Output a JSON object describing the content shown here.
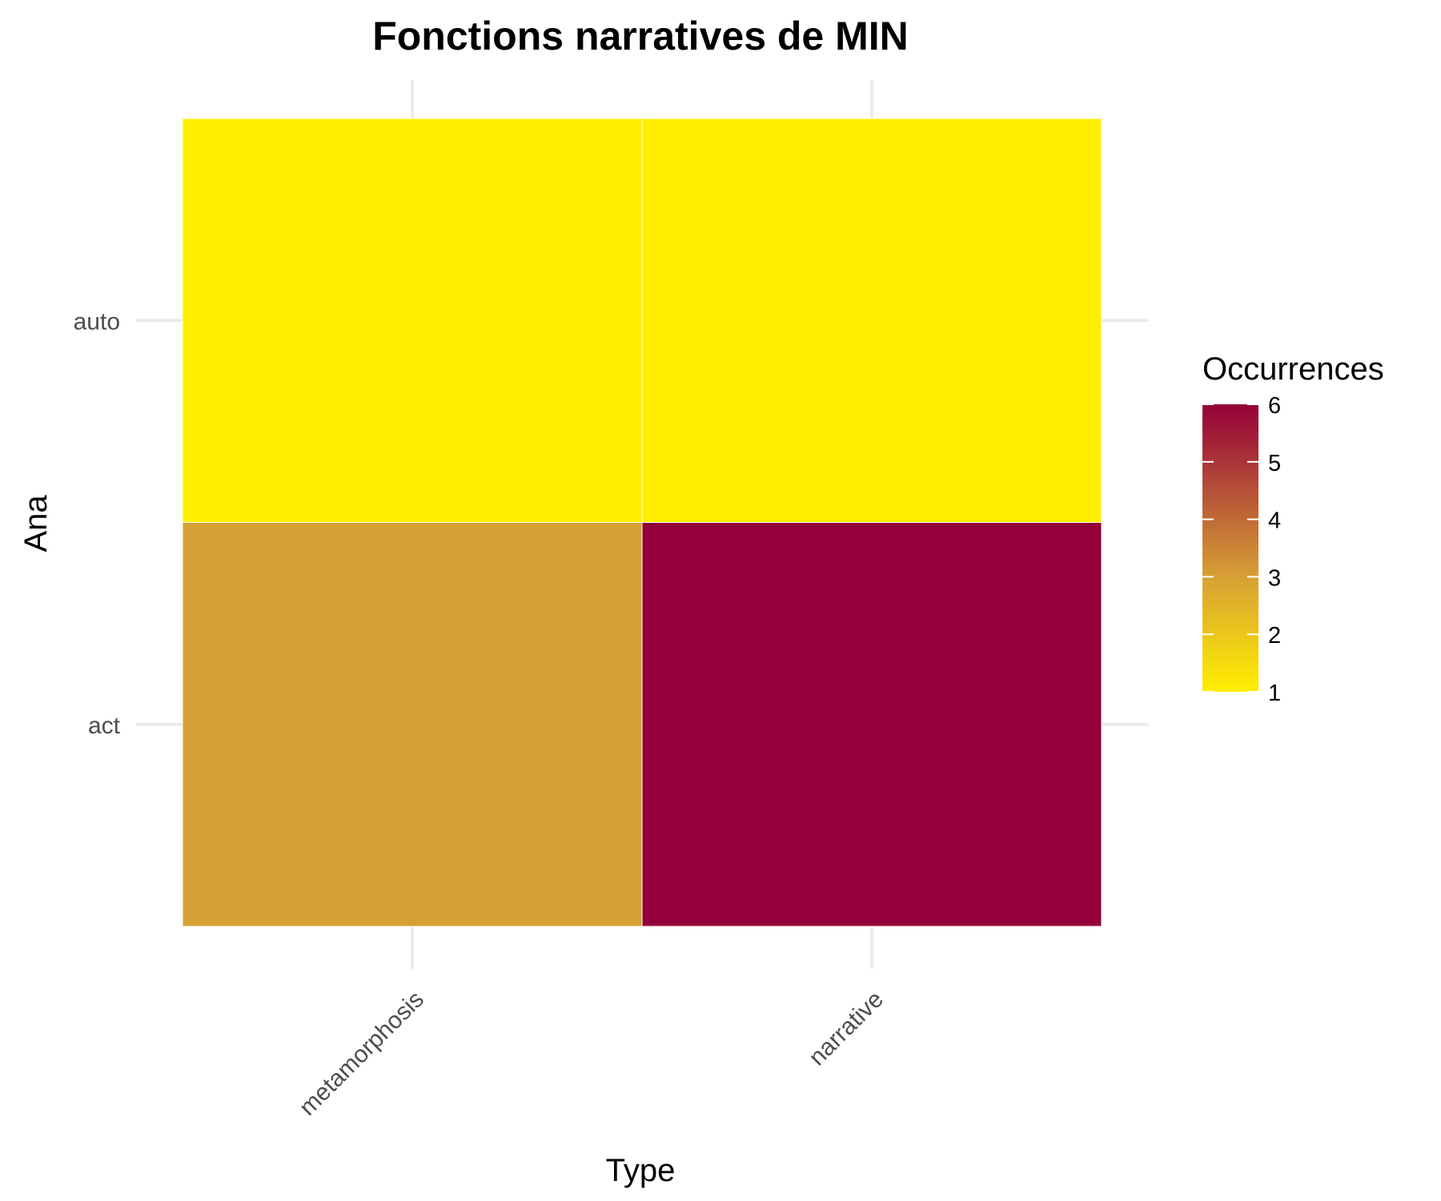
{
  "chart_data": {
    "type": "heatmap",
    "title": "Fonctions narratives de MIN",
    "xlabel": "Type",
    "ylabel": "Ana",
    "x_categories": [
      "metamorphosis",
      "narrative"
    ],
    "y_categories": [
      "act",
      "auto"
    ],
    "cells": [
      {
        "x": "metamorphosis",
        "y": "auto",
        "value": 1
      },
      {
        "x": "narrative",
        "y": "auto",
        "value": 1
      },
      {
        "x": "metamorphosis",
        "y": "act",
        "value": 3
      },
      {
        "x": "narrative",
        "y": "act",
        "value": 6
      }
    ],
    "legend": {
      "title": "Occurrences",
      "placement": "right",
      "ticks": [
        1,
        2,
        3,
        4,
        5,
        6
      ]
    },
    "color_range": [
      1,
      6
    ],
    "color_stops": [
      "#ffee00",
      "#d6a035",
      "#940039"
    ],
    "grid": true
  }
}
